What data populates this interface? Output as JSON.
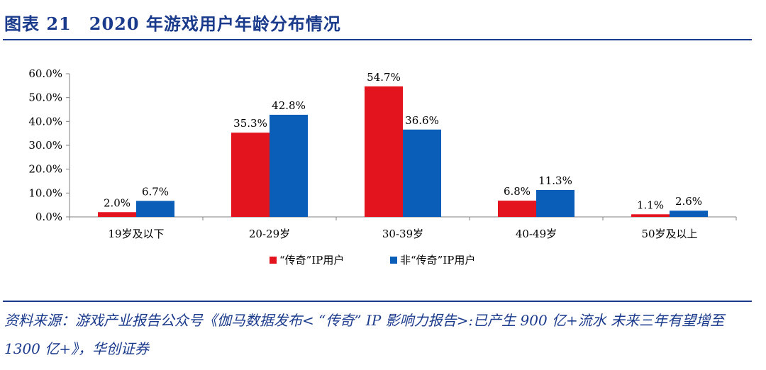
{
  "figure": {
    "title": "图表 21　2020 年游戏用户年龄分布情况",
    "source": "资料来源：游戏产业报告公众号《伽马数据发布< “传奇” IP 影响力报告>:已产生 900 亿+流水 未来三年有望增至 1300 亿+》，华创证券"
  },
  "chart_data": {
    "type": "bar",
    "categories": [
      "19岁及以下",
      "20-29岁",
      "30-39岁",
      "40-49岁",
      "50岁及以上"
    ],
    "series": [
      {
        "name": "“传奇”IP用户",
        "values": [
          2.0,
          35.3,
          54.7,
          6.8,
          1.1
        ],
        "color": "#e3141e"
      },
      {
        "name": "非“传奇”IP用户",
        "values": [
          6.7,
          42.8,
          36.6,
          11.3,
          2.6
        ],
        "color": "#0b5eb8"
      }
    ],
    "data_labels": [
      [
        "2.0%",
        "35.3%",
        "54.7%",
        "6.8%",
        "1.1%"
      ],
      [
        "6.7%",
        "42.8%",
        "36.6%",
        "11.3%",
        "2.6%"
      ]
    ],
    "ylim": [
      0,
      60
    ],
    "yticks": [
      0,
      10,
      20,
      30,
      40,
      50,
      60
    ],
    "ytick_labels": [
      "0.0%",
      "10.0%",
      "20.0%",
      "30.0%",
      "40.0%",
      "50.0%",
      "60.0%"
    ],
    "legend_position": "bottom-center",
    "grid": false
  }
}
